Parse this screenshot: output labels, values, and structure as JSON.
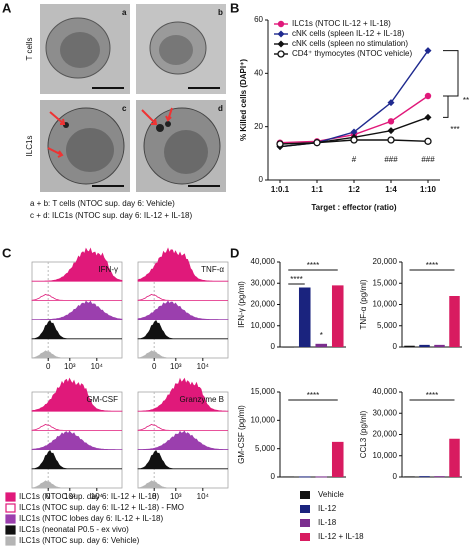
{
  "panel_labels": [
    "A",
    "B",
    "C",
    "D"
  ],
  "panel_a": {
    "row_labels": [
      "T cells",
      "ILC1s"
    ],
    "image_labels": [
      "a",
      "b",
      "c",
      "d"
    ],
    "caption": [
      "a + b: T cells (NTOC sup. day 6: Vehicle)",
      "c + d: ILC1s (NTOC sup. day 6: IL-12 + IL-18)"
    ]
  },
  "panel_c": {
    "markers": [
      "IFN-γ",
      "TNF-α",
      "GM-CSF",
      "Granzyme B"
    ],
    "xtick_labels": [
      "0",
      "10³",
      "10⁴"
    ],
    "legend": [
      {
        "name": "ILC1s (NTOC sup. day 6: IL-12 + IL-18)",
        "color": "#e0197a",
        "filled": true
      },
      {
        "name": "ILC1s (NTOC sup. day 6: IL-12 + IL-18) - FMO",
        "color": "#e0197a",
        "filled": false
      },
      {
        "name": "ILC1s (NTOC lobes day 6: IL-12 + IL-18)",
        "color": "#9b3fae",
        "filled": true
      },
      {
        "name": "ILC1s (neonatal P0.5 - ex vivo)",
        "color": "#111111",
        "filled": true
      },
      {
        "name": "ILC1s (NTOC sup. day 6: Vehicle)",
        "color": "#b5b5b5",
        "filled": true
      }
    ]
  },
  "chart_data": [
    {
      "type": "line",
      "xlabel": "Target : effector (ratio)",
      "ylabel": "% Killed cells (DAPI⁺)",
      "categories": [
        "1:0.1",
        "1:1",
        "1:2",
        "1:4",
        "1:10"
      ],
      "ylim": [
        0,
        60
      ],
      "yticks": [
        0,
        20,
        40,
        60
      ],
      "series": [
        {
          "name": "ILC1s (NTOC IL-12 + IL-18)",
          "color": "#e0197a",
          "marker": "circle",
          "values": [
            14,
            14.5,
            17,
            22,
            31.5
          ]
        },
        {
          "name": "cNK cells (spleen IL-12 + IL-18)",
          "color": "#1f2a8f",
          "marker": "diamond",
          "values": [
            12.5,
            14,
            18,
            29,
            48.5
          ]
        },
        {
          "name": "cNK cells (spleen no stimulation)",
          "color": "#111111",
          "marker": "diamond",
          "values": [
            12.5,
            14,
            16,
            18.5,
            23.5
          ]
        },
        {
          "name": "CD4⁺ thymocytes (NTOC vehicle)",
          "color": "#111111",
          "marker": "open-circle",
          "values": [
            13.5,
            14,
            15,
            15,
            14.5
          ]
        }
      ],
      "annotations": [
        "#",
        "###",
        "###",
        "**",
        "***"
      ]
    },
    {
      "type": "bar",
      "ylabel": "IFN-γ (pg/ml)",
      "categories": [
        "Vehicle",
        "IL-12",
        "IL-18",
        "IL-12 + IL-18"
      ],
      "colors": [
        "#111111",
        "#1a237e",
        "#7b2d8e",
        "#d81b60"
      ],
      "values": [
        200,
        28000,
        1500,
        29000
      ],
      "ylim": [
        0,
        40000
      ],
      "yticks": [
        0,
        {
          "value": 10000,
          "label": "10,000"
        },
        {
          "value": 20000,
          "label": "20,000"
        },
        {
          "value": 30000,
          "label": "30,000"
        },
        {
          "value": 40000,
          "label": "40,000"
        }
      ],
      "annotations": [
        "****",
        "****",
        "*"
      ]
    },
    {
      "type": "bar",
      "ylabel": "TNF-α (pg/ml)",
      "categories": [
        "Vehicle",
        "IL-12",
        "IL-18",
        "IL-12 + IL-18"
      ],
      "colors": [
        "#111111",
        "#1a237e",
        "#7b2d8e",
        "#d81b60"
      ],
      "values": [
        300,
        500,
        500,
        12000
      ],
      "ylim": [
        0,
        20000
      ],
      "yticks": [
        0,
        {
          "value": 5000,
          "label": "5,000"
        },
        {
          "value": 10000,
          "label": "10,000"
        },
        {
          "value": 15000,
          "label": "15,000"
        },
        {
          "value": 20000,
          "label": "20,000"
        }
      ],
      "annotations": [
        "****"
      ]
    },
    {
      "type": "bar",
      "ylabel": "GM-CSF (pg/ml)",
      "categories": [
        "Vehicle",
        "IL-12",
        "IL-18",
        "IL-12 + IL-18"
      ],
      "colors": [
        "#111111",
        "#1a237e",
        "#7b2d8e",
        "#d81b60"
      ],
      "values": [
        100,
        100,
        100,
        6200
      ],
      "ylim": [
        0,
        15000
      ],
      "yticks": [
        0,
        {
          "value": 5000,
          "label": "5,000"
        },
        {
          "value": 10000,
          "label": "10,000"
        },
        {
          "value": 15000,
          "label": "15,000"
        }
      ],
      "annotations": [
        "****"
      ]
    },
    {
      "type": "bar",
      "ylabel": "CCL3 (pg/ml)",
      "categories": [
        "Vehicle",
        "IL-12",
        "IL-18",
        "IL-12 + IL-18"
      ],
      "colors": [
        "#111111",
        "#1a237e",
        "#7b2d8e",
        "#d81b60"
      ],
      "values": [
        300,
        400,
        400,
        18000
      ],
      "ylim": [
        0,
        40000
      ],
      "yticks": [
        0,
        {
          "value": 10000,
          "label": "10,000"
        },
        {
          "value": 20000,
          "label": "20,000"
        },
        {
          "value": 30000,
          "label": "30,000"
        },
        {
          "value": 40000,
          "label": "40,000"
        }
      ],
      "annotations": [
        "****"
      ]
    }
  ]
}
